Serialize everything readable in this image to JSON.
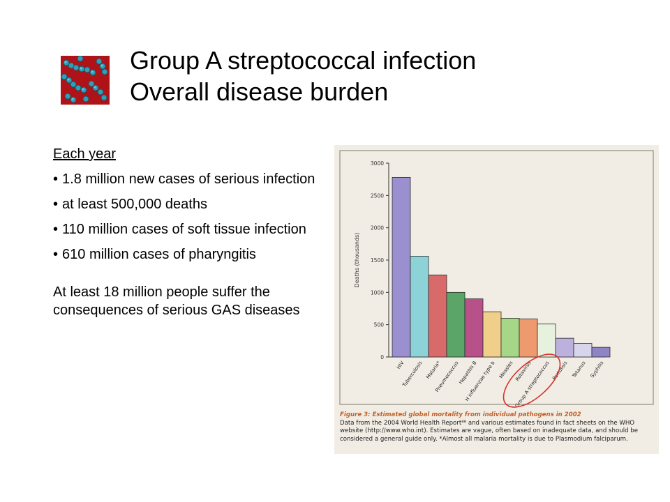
{
  "title": {
    "line1": "Group A streptococcal infection",
    "line2": "Overall disease burden"
  },
  "icons": {
    "header_image": "streptococcus-bacteria-image"
  },
  "body": {
    "heading": "Each year",
    "items": [
      "1.8 million new cases of serious infection",
      "at least 500,000 deaths",
      "110 million cases of soft tissue infection",
      "610 million cases of pharyngitis"
    ],
    "closing": "At least 18 million people suffer the consequences of serious GAS diseases"
  },
  "colors": {
    "panel_bg": "#f2ede4",
    "highlight_circle": "#d9302a",
    "caption_title": "#c0612a"
  },
  "chart_data": {
    "type": "bar",
    "ylabel": "Deaths (thousands)",
    "ylim": [
      0,
      3000
    ],
    "yticks": [
      "0",
      "500",
      "1000",
      "1500",
      "2000",
      "2500",
      "3000"
    ],
    "grid": false,
    "categories": [
      "HIV",
      "Tuberculosis",
      "Malaria*",
      "Pneumococcus",
      "Hepatitis B",
      "H influenzae type b",
      "Measles",
      "Rotavirus",
      "Group A streptococcus",
      "Pertussis",
      "Tetanus",
      "Syphilis"
    ],
    "values": [
      2780,
      1560,
      1270,
      1000,
      900,
      700,
      600,
      590,
      510,
      290,
      210,
      150
    ],
    "bar_colors": [
      "#9a8fcf",
      "#8cd2d6",
      "#d86a6a",
      "#5aa567",
      "#b8508a",
      "#efcf8a",
      "#a6d687",
      "#ef9a6e",
      "#e6f2dd",
      "#bcb1dd",
      "#d8d4ec",
      "#8f84c6"
    ],
    "highlighted_category": "Group A streptococcus",
    "caption_title": "Figure 3: Estimated global mortality from individual pathogens in 2002",
    "caption_text": "Data from the 2004 World Health Report⁸⁸ and various estimates found in fact sheets on the WHO website (http://www.who.int). Estimates are vague, often based on inadequate data, and should be considered a general guide only. *Almost all malaria mortality is due to Plasmodium falciparum."
  }
}
